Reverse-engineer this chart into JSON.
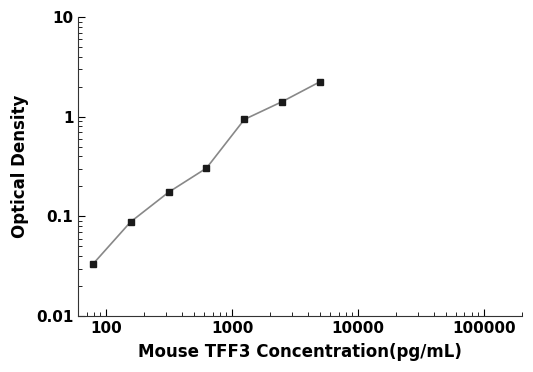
{
  "x": [
    78,
    156,
    313,
    625,
    1250,
    2500,
    5000
  ],
  "y": [
    0.033,
    0.088,
    0.175,
    0.305,
    0.94,
    1.42,
    2.25
  ],
  "xlabel": "Mouse TFF3 Concentration(pg/mL)",
  "ylabel": "Optical Density",
  "xlim": [
    60,
    200000
  ],
  "ylim": [
    0.01,
    10
  ],
  "xticks": [
    100,
    1000,
    10000,
    100000
  ],
  "yticks": [
    0.01,
    0.1,
    1,
    10
  ],
  "ytick_labels": [
    "0.01",
    "0.1",
    "1",
    "10"
  ],
  "xtick_labels": [
    "100",
    "1000",
    "10000",
    "100000"
  ],
  "line_color": "#888888",
  "marker_color": "#1a1a1a",
  "marker": "s",
  "marker_size": 5,
  "line_width": 1.2,
  "background_color": "#ffffff",
  "xlabel_fontsize": 12,
  "ylabel_fontsize": 12,
  "tick_fontsize": 11
}
